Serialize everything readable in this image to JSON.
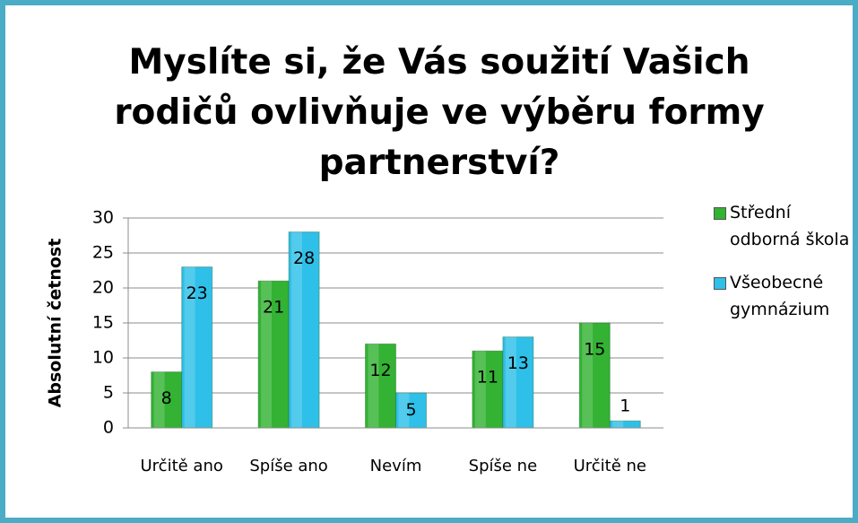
{
  "chart_data": {
    "type": "bar",
    "title": "Myslíte si, že Vás soužití Vašich rodičů ovlivňuje ve výběru formy partnerství?",
    "y_label": "Absolutní četnost",
    "categories": [
      "Určitě ano",
      "Spíše ano",
      "Nevím",
      "Spíše ne",
      "Určitě ne"
    ],
    "series": [
      {
        "name": "Střední odborná škola",
        "color": "#33b233",
        "values": [
          8,
          21,
          12,
          11,
          15
        ]
      },
      {
        "name": "Všeobecné gymnázium",
        "color": "#2ec0e8",
        "values": [
          23,
          28,
          5,
          13,
          1
        ]
      }
    ],
    "ylim": [
      0,
      30
    ],
    "yticks": [
      0,
      5,
      10,
      15,
      20,
      25,
      30
    ],
    "grid": true,
    "legend": "right"
  }
}
